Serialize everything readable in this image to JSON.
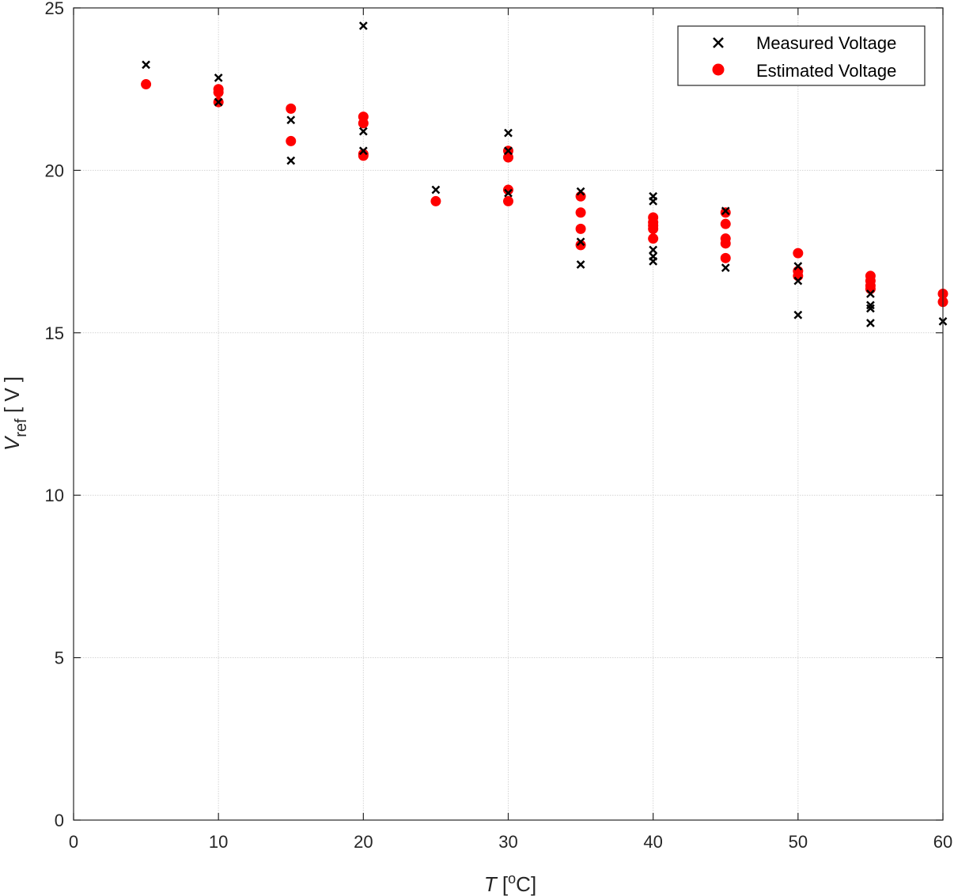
{
  "chart_data": {
    "type": "scatter",
    "xlabel": {
      "var": "T",
      "unit_open": " [",
      "unit_sup": "o",
      "unit_rest": "C]"
    },
    "ylabel": {
      "var": "V",
      "sub": "ref",
      "unit": " [ V ]"
    },
    "xlim": [
      0,
      60
    ],
    "ylim": [
      0,
      25
    ],
    "xticks": [
      "0",
      "10",
      "20",
      "30",
      "40",
      "50",
      "60"
    ],
    "yticks": [
      "0",
      "5",
      "10",
      "15",
      "20",
      "25"
    ],
    "grid": true,
    "legend_position": "top-right",
    "series": [
      {
        "name": "Measured Voltage",
        "marker": "x",
        "color": "#000000",
        "points": [
          [
            5,
            23.25
          ],
          [
            10,
            22.85
          ],
          [
            10,
            22.1
          ],
          [
            15,
            21.55
          ],
          [
            15,
            20.3
          ],
          [
            20,
            24.45
          ],
          [
            20,
            21.2
          ],
          [
            20,
            20.6
          ],
          [
            25,
            19.4
          ],
          [
            30,
            21.15
          ],
          [
            30,
            20.6
          ],
          [
            30,
            19.3
          ],
          [
            35,
            19.35
          ],
          [
            35,
            17.8
          ],
          [
            35,
            17.1
          ],
          [
            40,
            19.2
          ],
          [
            40,
            19.05
          ],
          [
            40,
            17.55
          ],
          [
            40,
            17.35
          ],
          [
            40,
            17.2
          ],
          [
            45,
            18.75
          ],
          [
            45,
            17.0
          ],
          [
            50,
            17.05
          ],
          [
            50,
            16.6
          ],
          [
            50,
            15.55
          ],
          [
            55,
            16.2
          ],
          [
            55,
            15.85
          ],
          [
            55,
            15.75
          ],
          [
            55,
            15.3
          ],
          [
            60,
            15.35
          ]
        ]
      },
      {
        "name": "Estimated Voltage",
        "marker": "o",
        "color": "#ff0000",
        "points": [
          [
            5,
            22.65
          ],
          [
            10,
            22.5
          ],
          [
            10,
            22.4
          ],
          [
            10,
            22.1
          ],
          [
            15,
            21.9
          ],
          [
            15,
            20.9
          ],
          [
            20,
            21.65
          ],
          [
            20,
            21.45
          ],
          [
            20,
            20.5
          ],
          [
            20,
            20.45
          ],
          [
            25,
            19.05
          ],
          [
            30,
            20.6
          ],
          [
            30,
            20.4
          ],
          [
            30,
            19.4
          ],
          [
            30,
            19.05
          ],
          [
            35,
            19.2
          ],
          [
            35,
            18.7
          ],
          [
            35,
            18.2
          ],
          [
            35,
            17.7
          ],
          [
            40,
            18.55
          ],
          [
            40,
            18.4
          ],
          [
            40,
            18.3
          ],
          [
            40,
            18.2
          ],
          [
            40,
            17.9
          ],
          [
            45,
            18.7
          ],
          [
            45,
            18.35
          ],
          [
            45,
            17.9
          ],
          [
            45,
            17.75
          ],
          [
            45,
            17.3
          ],
          [
            50,
            17.45
          ],
          [
            50,
            16.9
          ],
          [
            50,
            16.75
          ],
          [
            55,
            16.75
          ],
          [
            55,
            16.6
          ],
          [
            55,
            16.45
          ],
          [
            55,
            16.35
          ],
          [
            60,
            16.2
          ],
          [
            60,
            15.95
          ]
        ]
      }
    ]
  }
}
